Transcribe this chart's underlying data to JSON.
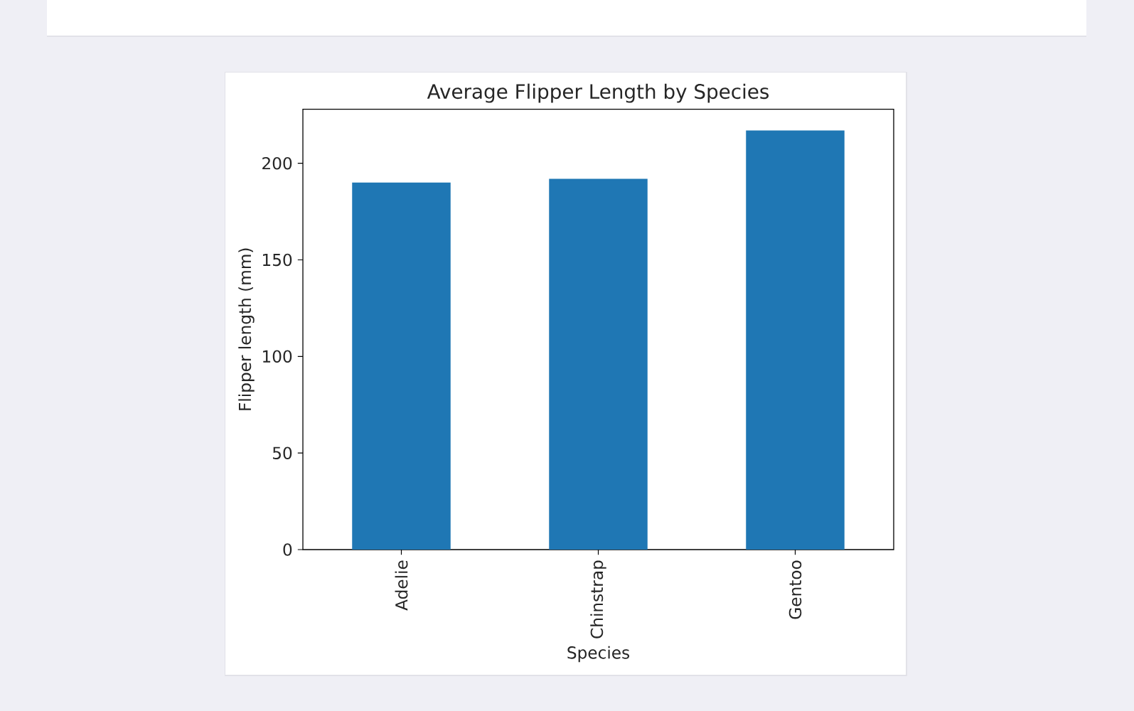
{
  "chart_data": {
    "type": "bar",
    "title": "Average Flipper Length by Species",
    "xlabel": "Species",
    "ylabel": "Flipper length (mm)",
    "categories": [
      "Adelie",
      "Chinstrap",
      "Gentoo"
    ],
    "values": [
      190,
      192,
      217
    ],
    "color": "#1f77b4",
    "ylim": [
      0,
      228
    ],
    "yticks": [
      0,
      50,
      100,
      150,
      200
    ]
  }
}
